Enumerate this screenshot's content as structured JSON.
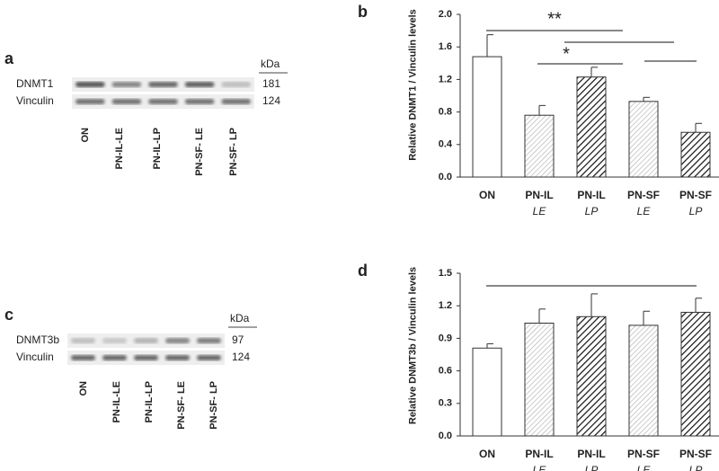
{
  "blots": [
    {
      "panel": "a",
      "rows": [
        "DNMT1",
        "Vinculin"
      ],
      "unit": "kDa",
      "sizes": [
        "181",
        "124"
      ],
      "lanes": [
        "ON",
        "PN-IL-LE",
        "PN-IL-LP",
        "PN-SF- LE",
        "PN-SF- LP"
      ]
    },
    {
      "panel": "c",
      "rows": [
        "DNMT3b",
        "Vinculin"
      ],
      "unit": "kDa",
      "sizes": [
        "97",
        "124"
      ],
      "lanes": [
        "ON",
        "PN-IL-LE",
        "PN-IL-LP",
        "PN-SF- LE",
        "PN-SF- LP"
      ]
    }
  ],
  "chart_data": [
    {
      "type": "bar",
      "panel": "b",
      "ylabel": "Relative DNMT1 / Vinculin levels",
      "categories": [
        "ON",
        "PN-IL",
        "PN-IL",
        "PN-SF",
        "PN-SF"
      ],
      "subcategories": [
        null,
        "LE",
        "LP",
        "LE",
        "LP"
      ],
      "values": [
        1.48,
        0.76,
        1.23,
        0.93,
        0.55
      ],
      "errors": [
        0.27,
        0.12,
        0.12,
        0.05,
        0.11
      ],
      "hatch": [
        "none",
        "light",
        "dark",
        "light",
        "dark"
      ],
      "ylim": [
        0,
        2
      ],
      "yticks": [
        {
          "value": 0,
          "label": "0.0"
        },
        0.4,
        0.8,
        1.2,
        1.6,
        {
          "value": 2,
          "label": "2.0"
        }
      ],
      "annotations": [
        "**",
        "*"
      ]
    },
    {
      "type": "bar",
      "panel": "d",
      "ylabel": "Relative DNMT3b / Vinculin levels",
      "categories": [
        "ON",
        "PN-IL",
        "PN-IL",
        "PN-SF",
        "PN-SF"
      ],
      "subcategories": [
        null,
        "LE",
        "LP",
        "LE",
        "LP"
      ],
      "values": [
        0.81,
        1.04,
        1.1,
        1.02,
        1.14
      ],
      "errors": [
        0.04,
        0.13,
        0.21,
        0.13,
        0.13
      ],
      "hatch": [
        "none",
        "light",
        "dark",
        "light",
        "dark"
      ],
      "ylim": [
        0,
        1.5
      ],
      "yticks": [
        {
          "value": 0,
          "label": "0.0"
        },
        0.3,
        0.6,
        0.9,
        1.2,
        1.5
      ]
    }
  ]
}
